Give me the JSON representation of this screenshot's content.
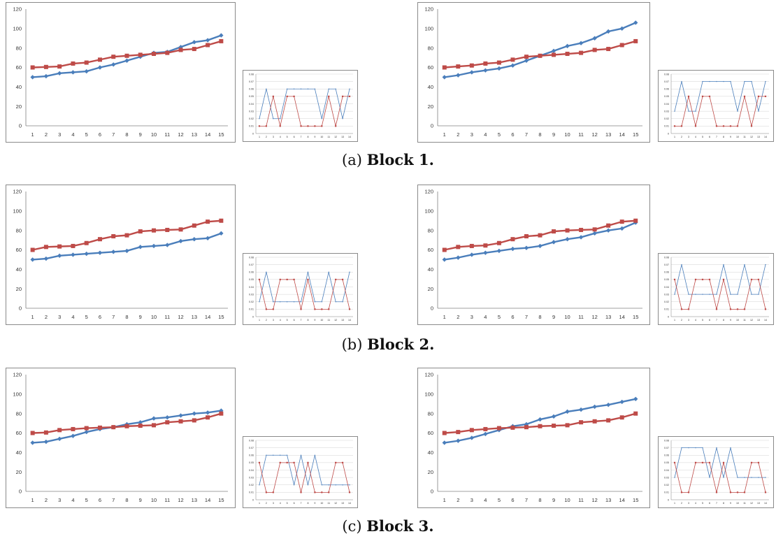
{
  "captions": [
    {
      "prefix": "(a)",
      "label": "Block 1."
    },
    {
      "prefix": "(b)",
      "label": "Block 2."
    },
    {
      "prefix": "(c)",
      "label": "Block 3."
    }
  ],
  "colors": {
    "series_blue": "#4a7ebb",
    "series_red": "#be4b48",
    "gridline": "#c8c8c8",
    "axis": "#808080"
  },
  "chart_data": [
    {
      "id": "block1-left",
      "type": "line",
      "ylim": [
        0,
        120
      ],
      "yticks": [
        0,
        20,
        40,
        60,
        80,
        100,
        120
      ],
      "categories": [
        "1",
        "2",
        "3",
        "4",
        "5",
        "6",
        "7",
        "8",
        "9",
        "10",
        "11",
        "12",
        "13",
        "14",
        "15"
      ],
      "series": [
        {
          "color": "#4a7ebb",
          "marker": "diamond",
          "values": [
            50,
            51,
            54,
            55,
            56,
            60,
            63,
            67,
            71,
            75,
            76,
            81,
            86,
            88,
            93
          ]
        },
        {
          "color": "#be4b48",
          "marker": "square",
          "values": [
            60,
            60.5,
            61,
            64,
            65,
            68,
            71,
            72,
            73,
            74,
            75,
            78,
            79,
            83,
            87
          ]
        }
      ]
    },
    {
      "id": "block1-left-small",
      "type": "line",
      "ylim": [
        0,
        0.08
      ],
      "yticks": [
        "0",
        "0.01",
        "0.02",
        "0.03",
        "0.04",
        "0.05",
        "0.06",
        "0.07",
        "0.08"
      ],
      "categories": [
        "1",
        "2",
        "3",
        "4",
        "5",
        "6",
        "7",
        "8",
        "9",
        "10",
        "11",
        "12",
        "13",
        "14"
      ],
      "series": [
        {
          "color": "#4a7ebb",
          "marker": "diamond",
          "values": [
            0.02,
            0.06,
            0.02,
            0.02,
            0.06,
            0.06,
            0.06,
            0.06,
            0.06,
            0.02,
            0.06,
            0.06,
            0.02,
            0.06
          ]
        },
        {
          "color": "#be4b48",
          "marker": "square",
          "values": [
            0.01,
            0.01,
            0.05,
            0.01,
            0.05,
            0.05,
            0.01,
            0.01,
            0.01,
            0.01,
            0.05,
            0.01,
            0.05,
            0.05
          ]
        }
      ]
    },
    {
      "id": "block1-right",
      "type": "line",
      "ylim": [
        0,
        120
      ],
      "yticks": [
        0,
        20,
        40,
        60,
        80,
        100,
        120
      ],
      "categories": [
        "1",
        "2",
        "3",
        "4",
        "5",
        "6",
        "7",
        "8",
        "9",
        "10",
        "11",
        "12",
        "13",
        "14",
        "15"
      ],
      "series": [
        {
          "color": "#4a7ebb",
          "marker": "diamond",
          "values": [
            50,
            52,
            55,
            57,
            59,
            62,
            67,
            72,
            77,
            82,
            85,
            90,
            97,
            100,
            106
          ]
        },
        {
          "color": "#be4b48",
          "marker": "square",
          "values": [
            60,
            61,
            62,
            64,
            65,
            68,
            71,
            72,
            73,
            74,
            75,
            78,
            79,
            83,
            87
          ]
        }
      ]
    },
    {
      "id": "block1-right-small",
      "type": "line",
      "ylim": [
        0,
        0.08
      ],
      "yticks": [
        "0",
        "0.01",
        "0.02",
        "0.03",
        "0.04",
        "0.05",
        "0.06",
        "0.07",
        "0.08"
      ],
      "categories": [
        "1",
        "2",
        "3",
        "4",
        "5",
        "6",
        "7",
        "8",
        "9",
        "10",
        "11",
        "12",
        "13",
        "14"
      ],
      "series": [
        {
          "color": "#4a7ebb",
          "marker": "diamond",
          "values": [
            0.03,
            0.07,
            0.03,
            0.03,
            0.07,
            0.07,
            0.07,
            0.07,
            0.07,
            0.03,
            0.07,
            0.07,
            0.03,
            0.07
          ]
        },
        {
          "color": "#be4b48",
          "marker": "square",
          "values": [
            0.01,
            0.01,
            0.05,
            0.01,
            0.05,
            0.05,
            0.01,
            0.01,
            0.01,
            0.01,
            0.05,
            0.01,
            0.05,
            0.05
          ]
        }
      ]
    },
    {
      "id": "block2-left",
      "type": "line",
      "ylim": [
        0,
        120
      ],
      "yticks": [
        0,
        20,
        40,
        60,
        80,
        100,
        120
      ],
      "categories": [
        "1",
        "2",
        "3",
        "4",
        "5",
        "6",
        "7",
        "8",
        "9",
        "10",
        "11",
        "12",
        "13",
        "14",
        "15"
      ],
      "series": [
        {
          "color": "#4a7ebb",
          "marker": "diamond",
          "values": [
            50,
            51,
            54,
            55,
            56,
            57,
            58,
            59,
            63,
            64,
            65,
            69,
            71,
            72,
            77
          ]
        },
        {
          "color": "#be4b48",
          "marker": "square",
          "values": [
            60,
            63,
            63.5,
            64,
            67,
            71,
            74,
            75,
            79,
            80,
            80.5,
            81,
            85,
            89,
            90
          ]
        }
      ]
    },
    {
      "id": "block2-left-small",
      "type": "line",
      "ylim": [
        0,
        0.08
      ],
      "yticks": [
        "0",
        "0.01",
        "0.02",
        "0.03",
        "0.04",
        "0.05",
        "0.06",
        "0.07",
        "0.08"
      ],
      "categories": [
        "1",
        "2",
        "3",
        "4",
        "5",
        "6",
        "7",
        "8",
        "9",
        "10",
        "11",
        "12",
        "13",
        "14"
      ],
      "series": [
        {
          "color": "#4a7ebb",
          "marker": "diamond",
          "values": [
            0.02,
            0.06,
            0.02,
            0.02,
            0.02,
            0.02,
            0.02,
            0.06,
            0.02,
            0.02,
            0.06,
            0.02,
            0.02,
            0.06
          ]
        },
        {
          "color": "#be4b48",
          "marker": "square",
          "values": [
            0.05,
            0.01,
            0.01,
            0.05,
            0.05,
            0.05,
            0.01,
            0.05,
            0.01,
            0.01,
            0.01,
            0.05,
            0.05,
            0.01
          ]
        }
      ]
    },
    {
      "id": "block2-right",
      "type": "line",
      "ylim": [
        0,
        120
      ],
      "yticks": [
        0,
        20,
        40,
        60,
        80,
        100,
        120
      ],
      "categories": [
        "1",
        "2",
        "3",
        "4",
        "5",
        "6",
        "7",
        "8",
        "9",
        "10",
        "11",
        "12",
        "13",
        "14",
        "15"
      ],
      "series": [
        {
          "color": "#4a7ebb",
          "marker": "diamond",
          "values": [
            50,
            52,
            55,
            57,
            59,
            61,
            62,
            64,
            68,
            71,
            73,
            77,
            80,
            82,
            88
          ]
        },
        {
          "color": "#be4b48",
          "marker": "square",
          "values": [
            60,
            63,
            64,
            64.5,
            67,
            71,
            74,
            75,
            79,
            80,
            80.5,
            81,
            85,
            89,
            90
          ]
        }
      ]
    },
    {
      "id": "block2-right-small",
      "type": "line",
      "ylim": [
        0,
        0.08
      ],
      "yticks": [
        "0",
        "0.01",
        "0.02",
        "0.03",
        "0.04",
        "0.05",
        "0.06",
        "0.07",
        "0.08"
      ],
      "categories": [
        "1",
        "2",
        "3",
        "4",
        "5",
        "6",
        "7",
        "8",
        "9",
        "10",
        "11",
        "12",
        "13",
        "14"
      ],
      "series": [
        {
          "color": "#4a7ebb",
          "marker": "diamond",
          "values": [
            0.03,
            0.07,
            0.03,
            0.03,
            0.03,
            0.03,
            0.03,
            0.07,
            0.03,
            0.03,
            0.07,
            0.03,
            0.03,
            0.07
          ]
        },
        {
          "color": "#be4b48",
          "marker": "square",
          "values": [
            0.05,
            0.01,
            0.01,
            0.05,
            0.05,
            0.05,
            0.01,
            0.05,
            0.01,
            0.01,
            0.01,
            0.05,
            0.05,
            0.01
          ]
        }
      ]
    },
    {
      "id": "block3-left",
      "type": "line",
      "ylim": [
        0,
        120
      ],
      "yticks": [
        0,
        20,
        40,
        60,
        80,
        100,
        120
      ],
      "categories": [
        "1",
        "2",
        "3",
        "4",
        "5",
        "6",
        "7",
        "8",
        "9",
        "10",
        "11",
        "12",
        "13",
        "14",
        "15"
      ],
      "series": [
        {
          "color": "#4a7ebb",
          "marker": "diamond",
          "values": [
            50,
            51,
            54,
            57,
            61,
            64,
            66,
            69,
            71,
            75,
            76,
            78,
            80,
            81,
            83
          ]
        },
        {
          "color": "#be4b48",
          "marker": "square",
          "values": [
            60,
            60.5,
            63,
            64,
            65,
            65.5,
            66,
            67,
            67.5,
            68,
            71,
            72,
            73,
            76,
            80
          ]
        }
      ]
    },
    {
      "id": "block3-left-small",
      "type": "line",
      "ylim": [
        0,
        0.08
      ],
      "yticks": [
        "0",
        "0.01",
        "0.02",
        "0.03",
        "0.04",
        "0.05",
        "0.06",
        "0.07",
        "0.08"
      ],
      "categories": [
        "1",
        "2",
        "3",
        "4",
        "5",
        "6",
        "7",
        "8",
        "9",
        "10",
        "11",
        "12",
        "13",
        "14"
      ],
      "series": [
        {
          "color": "#4a7ebb",
          "marker": "diamond",
          "values": [
            0.02,
            0.06,
            0.06,
            0.06,
            0.06,
            0.02,
            0.06,
            0.02,
            0.06,
            0.02,
            0.02,
            0.02,
            0.02,
            0.02
          ]
        },
        {
          "color": "#be4b48",
          "marker": "square",
          "values": [
            0.05,
            0.01,
            0.01,
            0.05,
            0.05,
            0.05,
            0.01,
            0.05,
            0.01,
            0.01,
            0.01,
            0.05,
            0.05,
            0.01
          ]
        }
      ]
    },
    {
      "id": "block3-right",
      "type": "line",
      "ylim": [
        0,
        120
      ],
      "yticks": [
        0,
        20,
        40,
        60,
        80,
        100,
        120
      ],
      "categories": [
        "1",
        "2",
        "3",
        "4",
        "5",
        "6",
        "7",
        "8",
        "9",
        "10",
        "11",
        "12",
        "13",
        "14",
        "15"
      ],
      "series": [
        {
          "color": "#4a7ebb",
          "marker": "diamond",
          "values": [
            50,
            52,
            55,
            59,
            63,
            67,
            69,
            74,
            77,
            82,
            84,
            87,
            89,
            92,
            95
          ]
        },
        {
          "color": "#be4b48",
          "marker": "square",
          "values": [
            60,
            61,
            63,
            64,
            65,
            65.5,
            66,
            67,
            67.5,
            68,
            71,
            72,
            73,
            76,
            80
          ]
        }
      ]
    },
    {
      "id": "block3-right-small",
      "type": "line",
      "ylim": [
        0,
        0.08
      ],
      "yticks": [
        "0",
        "0.01",
        "0.02",
        "0.03",
        "0.04",
        "0.05",
        "0.06",
        "0.07",
        "0.08"
      ],
      "categories": [
        "1",
        "2",
        "3",
        "4",
        "5",
        "6",
        "7",
        "8",
        "9",
        "10",
        "11",
        "12",
        "13",
        "14"
      ],
      "series": [
        {
          "color": "#4a7ebb",
          "marker": "diamond",
          "values": [
            0.03,
            0.07,
            0.07,
            0.07,
            0.07,
            0.03,
            0.07,
            0.03,
            0.07,
            0.03,
            0.03,
            0.03,
            0.03,
            0.03
          ]
        },
        {
          "color": "#be4b48",
          "marker": "square",
          "values": [
            0.05,
            0.01,
            0.01,
            0.05,
            0.05,
            0.05,
            0.01,
            0.05,
            0.01,
            0.01,
            0.01,
            0.05,
            0.05,
            0.01
          ]
        }
      ]
    }
  ]
}
